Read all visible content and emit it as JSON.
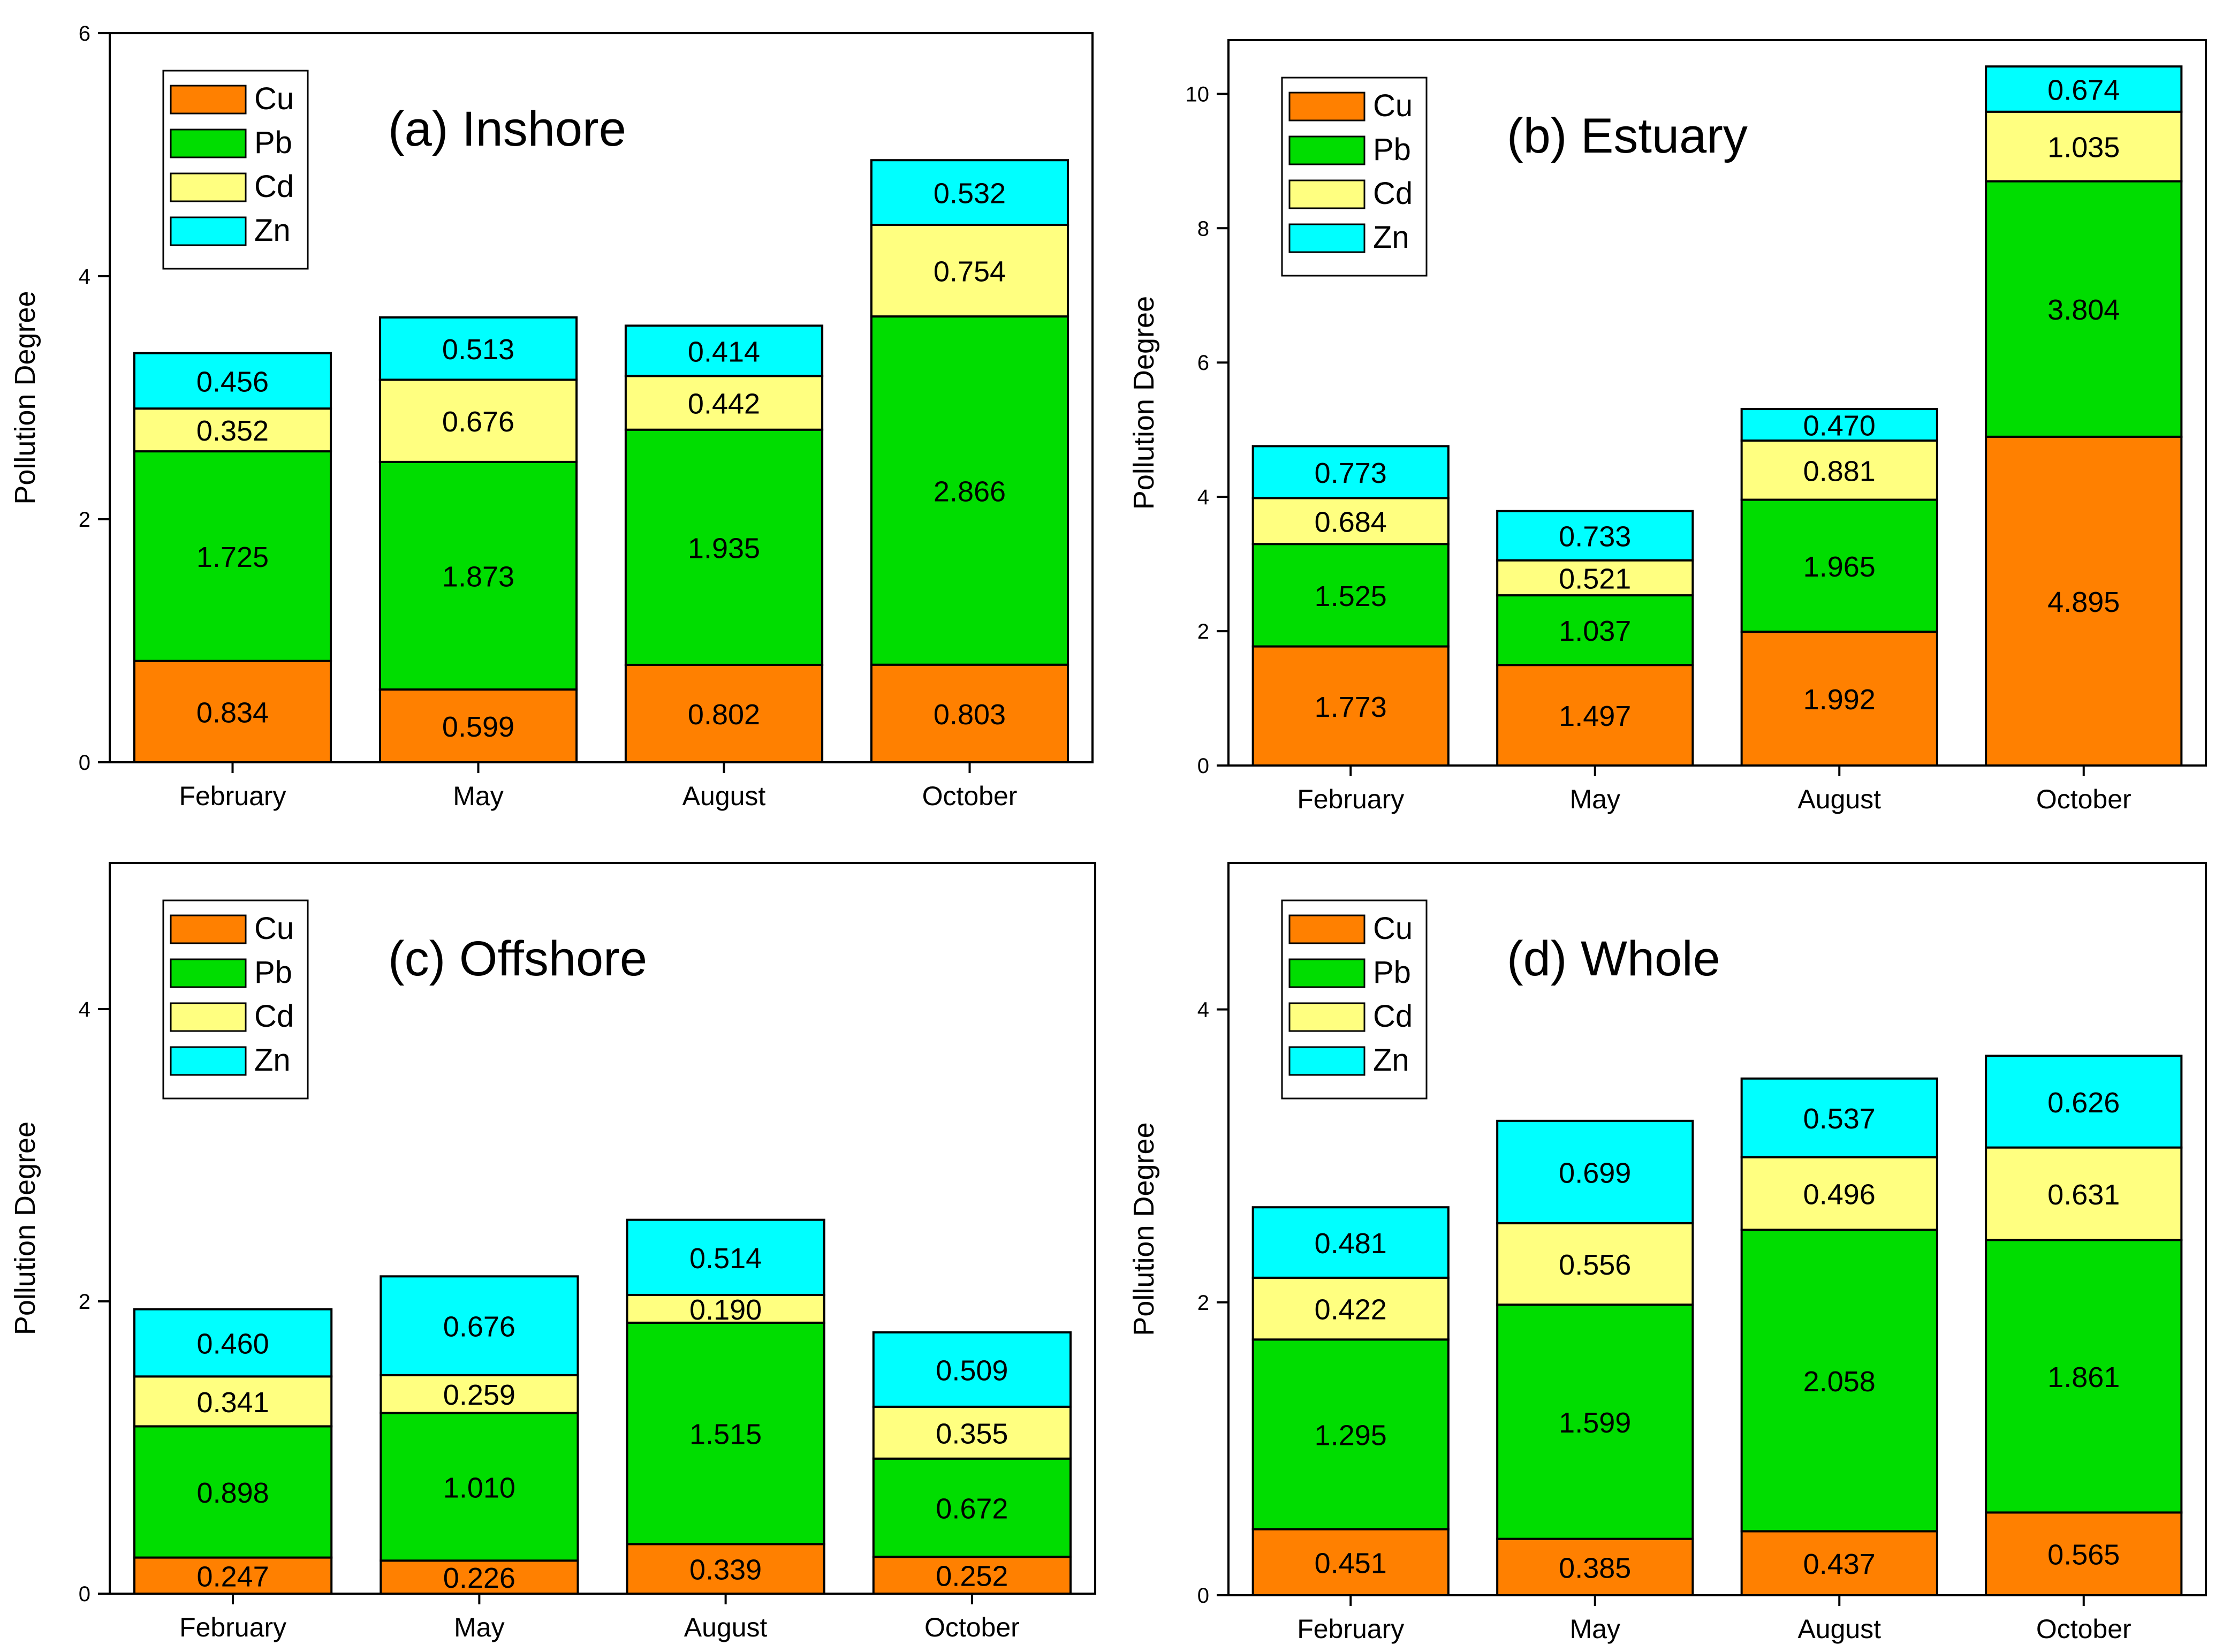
{
  "colors": {
    "Cu": "#FF8000",
    "Pb": "#00DD00",
    "Cd": "#FFFF80",
    "Zn": "#00FFFF"
  },
  "chart_data": [
    {
      "type": "bar",
      "stacked": true,
      "title": "(a) Inshore",
      "ylabel": "Pollution Degree",
      "xlabel": "",
      "categories": [
        "February",
        "May",
        "August",
        "October"
      ],
      "ylim": [
        0,
        6
      ],
      "yticks": [
        0,
        2,
        4,
        6
      ],
      "legend": [
        "Cu",
        "Pb",
        "Cd",
        "Zn"
      ],
      "legend_position": "top-left",
      "series": [
        {
          "name": "Cu",
          "values": [
            0.834,
            0.599,
            0.802,
            0.803
          ],
          "labels": [
            "0.834",
            "0.599",
            "0.802",
            "0.803"
          ]
        },
        {
          "name": "Pb",
          "values": [
            1.725,
            1.873,
            1.935,
            2.866
          ],
          "labels": [
            "1.725",
            "1.873",
            "1.935",
            "2.866"
          ]
        },
        {
          "name": "Cd",
          "values": [
            0.352,
            0.676,
            0.442,
            0.754
          ],
          "labels": [
            "0.352",
            "0.676",
            "0.442",
            "0.754"
          ]
        },
        {
          "name": "Zn",
          "values": [
            0.456,
            0.513,
            0.414,
            0.532
          ],
          "labels": [
            "0.456",
            "0.513",
            "0.414",
            "0.532"
          ]
        }
      ]
    },
    {
      "type": "bar",
      "stacked": true,
      "title": "(b) Estuary",
      "ylabel": "Pollution Degree",
      "xlabel": "",
      "categories": [
        "February",
        "May",
        "August",
        "October"
      ],
      "ylim": [
        0,
        10.8
      ],
      "yticks": [
        0,
        2,
        4,
        6,
        8,
        10
      ],
      "legend": [
        "Cu",
        "Pb",
        "Cd",
        "Zn"
      ],
      "legend_position": "top-left",
      "series": [
        {
          "name": "Cu",
          "values": [
            1.773,
            1.497,
            1.992,
            4.895
          ],
          "labels": [
            "1.773",
            "1.497",
            "1.992",
            "4.895"
          ]
        },
        {
          "name": "Pb",
          "values": [
            1.525,
            1.037,
            1.965,
            3.804
          ],
          "labels": [
            "1.525",
            "1.037",
            "1.965",
            "3.804"
          ]
        },
        {
          "name": "Cd",
          "values": [
            0.684,
            0.521,
            0.881,
            1.035
          ],
          "labels": [
            "0.684",
            "0.521",
            "0.881",
            "1.035"
          ]
        },
        {
          "name": "Zn",
          "values": [
            0.773,
            0.733,
            0.47,
            0.674
          ],
          "labels": [
            "0.773",
            "0.733",
            "0.470",
            "0.674"
          ]
        }
      ]
    },
    {
      "type": "bar",
      "stacked": true,
      "title": "(c) Offshore",
      "ylabel": "Pollution Degree",
      "xlabel": "",
      "categories": [
        "February",
        "May",
        "August",
        "October"
      ],
      "ylim": [
        0,
        5
      ],
      "yticks": [
        0,
        2,
        4
      ],
      "legend": [
        "Cu",
        "Pb",
        "Cd",
        "Zn"
      ],
      "legend_position": "top-left",
      "series": [
        {
          "name": "Cu",
          "values": [
            0.247,
            0.226,
            0.339,
            0.252
          ],
          "labels": [
            "0.247",
            "0.226",
            "0.339",
            "0.252"
          ]
        },
        {
          "name": "Pb",
          "values": [
            0.898,
            1.01,
            1.515,
            0.672
          ],
          "labels": [
            "0.898",
            "1.010",
            "1.515",
            "0.672"
          ]
        },
        {
          "name": "Cd",
          "values": [
            0.341,
            0.259,
            0.19,
            0.355
          ],
          "labels": [
            "0.341",
            "0.259",
            "0.190",
            "0.355"
          ]
        },
        {
          "name": "Zn",
          "values": [
            0.46,
            0.676,
            0.514,
            0.509
          ],
          "labels": [
            "0.460",
            "0.676",
            "0.514",
            "0.509"
          ]
        }
      ]
    },
    {
      "type": "bar",
      "stacked": true,
      "title": "(d) Whole",
      "ylabel": "Pollution Degree",
      "xlabel": "",
      "categories": [
        "February",
        "May",
        "August",
        "October"
      ],
      "ylim": [
        0,
        5
      ],
      "yticks": [
        0,
        2,
        4
      ],
      "legend": [
        "Cu",
        "Pb",
        "Cd",
        "Zn"
      ],
      "legend_position": "top-left",
      "series": [
        {
          "name": "Cu",
          "values": [
            0.451,
            0.385,
            0.437,
            0.565
          ],
          "labels": [
            "0.451",
            "0.385",
            "0.437",
            "0.565"
          ]
        },
        {
          "name": "Pb",
          "values": [
            1.295,
            1.599,
            2.058,
            1.861
          ],
          "labels": [
            "1.295",
            "1.599",
            "2.058",
            "1.861"
          ]
        },
        {
          "name": "Cd",
          "values": [
            0.422,
            0.556,
            0.496,
            0.631
          ],
          "labels": [
            "0.422",
            "0.556",
            "0.496",
            "0.631"
          ]
        },
        {
          "name": "Zn",
          "values": [
            0.481,
            0.699,
            0.537,
            0.626
          ],
          "labels": [
            "0.481",
            "0.699",
            "0.537",
            "0.626"
          ]
        }
      ]
    }
  ]
}
